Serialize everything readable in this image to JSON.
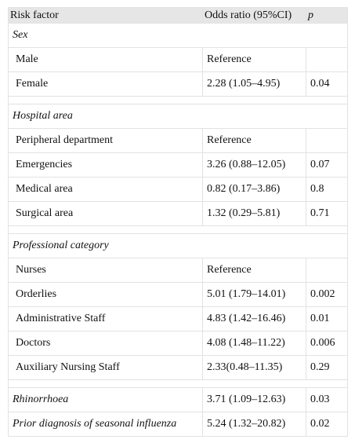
{
  "header": {
    "col1": "Risk factor",
    "col2": "Odds ratio (95%CI)",
    "col3": "p"
  },
  "sections": [
    {
      "title": "Sex",
      "rows": [
        {
          "factor": "Male",
          "or": "Reference",
          "p": ""
        },
        {
          "factor": "Female",
          "or": "2.28 (1.05–4.95)",
          "p": "0.04"
        }
      ]
    },
    {
      "title": "Hospital area",
      "rows": [
        {
          "factor": "Peripheral department",
          "or": "Reference",
          "p": ""
        },
        {
          "factor": "Emergencies",
          "or": "3.26 (0.88–12.05)",
          "p": "0.07"
        },
        {
          "factor": "Medical area",
          "or": "0.82 (0.17–3.86)",
          "p": "0.8"
        },
        {
          "factor": "Surgical area",
          "or": "1.32 (0.29–5.81)",
          "p": "0.71"
        }
      ]
    },
    {
      "title": "Professional category",
      "rows": [
        {
          "factor": "Nurses",
          "or": "Reference",
          "p": ""
        },
        {
          "factor": "Orderlies",
          "or": "5.01 (1.79–14.01)",
          "p": "0.002"
        },
        {
          "factor": "Administrative Staff",
          "or": "4.83 (1.42–16.46)",
          "p": "0.01"
        },
        {
          "factor": "Doctors",
          "or": "4.08 (1.48–11.22)",
          "p": "0.006"
        },
        {
          "factor": "Auxiliary Nursing Staff",
          "or": "2.33(0.48–11.35)",
          "p": "0.29"
        }
      ]
    }
  ],
  "standalone_rows": [
    {
      "factor": "Rhinorrhoea",
      "or": "3.71 (1.09–12.63)",
      "p": "0.03"
    },
    {
      "factor": "Prior diagnosis of seasonal influenza",
      "or": "5.24 (1.32–20.82)",
      "p": "0.02"
    }
  ]
}
